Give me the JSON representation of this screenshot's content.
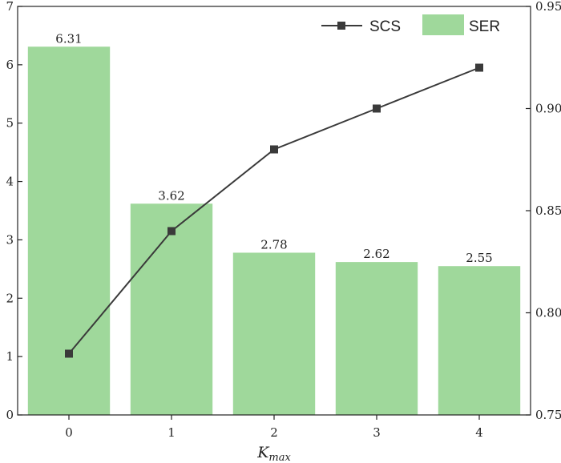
{
  "chart_data": {
    "type": "bar+line",
    "x_categories": [
      "0",
      "1",
      "2",
      "3",
      "4"
    ],
    "xlabel": {
      "main": "K",
      "subscript": "max"
    },
    "left_axis": {
      "ylim": [
        0,
        7
      ],
      "ticks": [
        "0",
        "1",
        "2",
        "3",
        "4",
        "5",
        "6",
        "7"
      ]
    },
    "right_axis": {
      "ylim": [
        0.75,
        0.95
      ],
      "ticks": [
        "0.75",
        "0.80",
        "0.85",
        "0.90",
        "0.95"
      ]
    },
    "series": [
      {
        "name": "SER",
        "type": "bar",
        "axis": "left",
        "values": [
          6.31,
          3.62,
          2.78,
          2.62,
          2.55
        ],
        "labels": [
          "6.31",
          "3.62",
          "2.78",
          "2.62",
          "2.55"
        ],
        "color": "#9fd89b"
      },
      {
        "name": "SCS",
        "type": "line",
        "axis": "right",
        "marker": "square",
        "values": [
          0.78,
          0.84,
          0.88,
          0.9,
          0.92
        ],
        "color": "#3a3a3a"
      }
    ],
    "legend": {
      "placement": "top-right",
      "items": [
        "SCS",
        "SER"
      ]
    },
    "grid": false
  }
}
